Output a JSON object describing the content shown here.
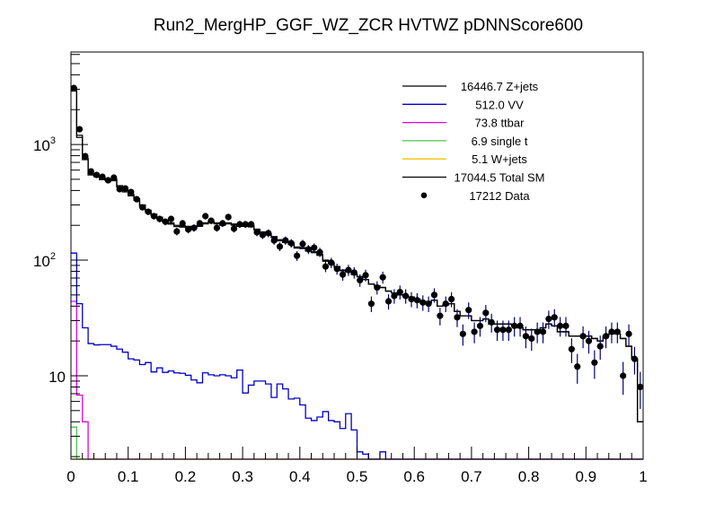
{
  "chart_data": {
    "type": "histogram",
    "title": "Run2_MergHP_GGF_WZ_ZCR HVTWZ  pDNNScore600",
    "xlabel": "",
    "ylabel": "",
    "xlim": [
      0,
      1
    ],
    "ylim": [
      1.9,
      6300
    ],
    "yscale": "log",
    "bin_width": 0.01,
    "x_ticks": [
      "0",
      "0.1",
      "0.2",
      "0.3",
      "0.4",
      "0.5",
      "0.6",
      "0.7",
      "0.8",
      "0.9",
      "1"
    ],
    "x_tick_values": [
      0,
      0.1,
      0.2,
      0.3,
      0.4,
      0.5,
      0.6,
      0.7,
      0.8,
      0.9,
      1
    ],
    "y_ticks": [
      {
        "value": 10,
        "base": "10",
        "exp": ""
      },
      {
        "value": 100,
        "base": "10",
        "exp": "2"
      },
      {
        "value": 1000,
        "base": "10",
        "exp": "3"
      }
    ],
    "legend_position": "top-right",
    "legend": [
      {
        "label": "16446.7 Z+jets",
        "color": "#000000",
        "style": "line"
      },
      {
        "label": "512.0 VV",
        "color": "#0000cc",
        "style": "line"
      },
      {
        "label": "73.8 ttbar",
        "color": "#e600e6",
        "style": "line"
      },
      {
        "label": "6.9 single t",
        "color": "#4cc44c",
        "style": "line"
      },
      {
        "label": "5.1 W+jets",
        "color": "#f2c200",
        "style": "line"
      },
      {
        "label": "17044.5 Total SM",
        "color": "#000000",
        "style": "line"
      },
      {
        "label": "17212 Data",
        "color": "#000000",
        "style": "marker"
      }
    ],
    "series": [
      {
        "name": "Data",
        "kind": "points",
        "color": "#000000",
        "values": [
          3080,
          1355,
          793,
          585,
          545,
          526,
          490,
          517,
          410,
          417,
          388,
          336,
          286,
          262,
          240,
          227,
          215,
          227,
          177,
          208,
          184,
          190,
          208,
          240,
          219,
          190,
          208,
          236,
          187,
          204,
          204,
          204,
          174,
          165,
          171,
          148,
          131,
          148,
          140,
          109,
          138,
          124,
          128,
          117,
          88,
          95,
          84,
          75,
          82,
          78,
          67,
          74,
          42,
          58,
          71,
          44,
          49,
          53,
          49,
          46,
          45,
          43,
          42,
          50,
          33,
          42,
          46,
          32,
          23,
          37,
          24,
          27,
          35,
          29,
          25,
          25,
          25,
          27,
          27,
          22,
          21,
          24,
          24,
          31,
          32,
          27,
          27,
          17,
          12,
          22,
          20,
          13,
          18,
          22,
          24,
          24,
          10,
          23,
          14,
          8
        ]
      },
      {
        "name": "Total SM",
        "kind": "step",
        "color": "#000000",
        "values": [
          3080,
          1200,
          760,
          560,
          540,
          510,
          500,
          500,
          440,
          400,
          370,
          340,
          300,
          270,
          250,
          235,
          220,
          210,
          200,
          198,
          196,
          194,
          200,
          210,
          215,
          210,
          205,
          210,
          205,
          200,
          200,
          198,
          185,
          175,
          170,
          160,
          150,
          145,
          140,
          130,
          128,
          122,
          118,
          112,
          100,
          95,
          88,
          82,
          80,
          76,
          72,
          68,
          62,
          60,
          58,
          54,
          52,
          50,
          49,
          48,
          46,
          44,
          43,
          45,
          40,
          41,
          42,
          36,
          33,
          33,
          30,
          30,
          31,
          28,
          28,
          28,
          28,
          27,
          26,
          25,
          25,
          25,
          26,
          28,
          27,
          24,
          24,
          22,
          22,
          22,
          22,
          21,
          20,
          22,
          23,
          23,
          21,
          18,
          14,
          4
        ]
      },
      {
        "name": "Z+jets",
        "kind": "step",
        "color": "#000000",
        "values": [
          2900,
          1150,
          740,
          545,
          527,
          496,
          486,
          486,
          428,
          389,
          360,
          330,
          291,
          262,
          243,
          229,
          214,
          205,
          195,
          193,
          192,
          190,
          196,
          206,
          211,
          206,
          201,
          206,
          201,
          196,
          196,
          194,
          182,
          172,
          167,
          157,
          147,
          142,
          137,
          127,
          126,
          120,
          116,
          110,
          98,
          94,
          87,
          81,
          79,
          75,
          72,
          68,
          62,
          60,
          58,
          54,
          52,
          50,
          49,
          48,
          46,
          44,
          43,
          45,
          40,
          41,
          42,
          36,
          33,
          33,
          30,
          30,
          31,
          28,
          28,
          28,
          28,
          27,
          26,
          25,
          25,
          25,
          26,
          28,
          27,
          24,
          24,
          22,
          22,
          22,
          22,
          21,
          20,
          22,
          23,
          23,
          21,
          18,
          14,
          4
        ]
      },
      {
        "name": "VV",
        "kind": "step",
        "color": "#0000cc",
        "values": [
          115,
          42,
          26,
          19,
          18.5,
          18.6,
          18.6,
          18,
          17,
          16,
          14,
          13.7,
          12.5,
          13,
          10.8,
          11.7,
          10.7,
          11,
          10.6,
          10.5,
          10.1,
          9.2,
          8.7,
          10.6,
          10.2,
          10,
          10.2,
          10,
          9.6,
          11.2,
          7.1,
          8.3,
          9,
          9,
          8.5,
          6.5,
          8.5,
          7.7,
          6.3,
          6.4,
          5.6,
          4.3,
          4.1,
          4.4,
          4.9,
          4.1,
          4,
          3.5,
          4.7,
          3.4,
          2.2,
          2.1,
          1.9,
          1.9,
          2.2,
          1.9,
          1.9,
          1.9,
          1.9,
          1.9,
          1.9,
          1.9,
          1.9,
          1.9,
          1.9,
          1.9,
          1.9,
          1.9,
          1.9,
          1.9,
          1.9,
          1.9,
          1.9,
          1.9,
          1.9,
          1.9,
          1.9,
          1.9,
          1.9,
          1.9,
          1.9,
          1.9,
          1.9,
          1.9,
          1.9,
          1.9,
          1.9,
          1.9,
          1.9,
          1.9,
          1.9,
          1.9,
          1.9,
          1.9,
          1.9,
          1.9,
          1.9,
          1.9,
          1.9,
          1.9
        ]
      },
      {
        "name": "ttbar",
        "kind": "step",
        "color": "#e600e6",
        "values": [
          44,
          6.8,
          4,
          1.9,
          1.9,
          1.9,
          1.9,
          1.9,
          1.9,
          1.9,
          1.9,
          1.9,
          1.9,
          1.9,
          1.9,
          1.9,
          1.9,
          1.9,
          1.9,
          1.9,
          1.9,
          1.9,
          1.9,
          1.9,
          1.9,
          1.9,
          1.9,
          1.9,
          1.9,
          1.9,
          1.9,
          1.9,
          1.9,
          1.9,
          1.9,
          1.9,
          1.9,
          1.9,
          1.9,
          1.9,
          1.9,
          1.9,
          1.9,
          1.9,
          1.9,
          1.9,
          1.9,
          1.9,
          1.9,
          1.9,
          1.9,
          1.9,
          1.9,
          1.9,
          1.9,
          1.9,
          1.9,
          1.9,
          1.9,
          1.9,
          1.9,
          1.9,
          1.9,
          1.9,
          1.9,
          1.9,
          1.9,
          1.9,
          1.9,
          1.9,
          1.9,
          1.9,
          1.9,
          1.9,
          1.9,
          1.9,
          1.9,
          1.9,
          1.9,
          1.9,
          1.9,
          1.9,
          1.9,
          1.9,
          1.9,
          1.9,
          1.9,
          1.9,
          1.9,
          1.9,
          1.9,
          1.9,
          1.9,
          1.9,
          1.9,
          1.9,
          1.9,
          1.9,
          1.9,
          1.9
        ]
      },
      {
        "name": "single t",
        "kind": "step",
        "color": "#4cc44c",
        "values": [
          3.6,
          1.9,
          1.9,
          1.9,
          1.9,
          1.9,
          1.9,
          1.9,
          1.9,
          1.9,
          1.9,
          1.9,
          1.9,
          1.9,
          1.9,
          1.9,
          1.9,
          1.9,
          1.9,
          1.9,
          1.9,
          1.9,
          1.9,
          1.9,
          1.9,
          1.9,
          1.9,
          1.9,
          1.9,
          1.9,
          1.9,
          1.9,
          1.9,
          1.9,
          1.9,
          1.9,
          1.9,
          1.9,
          1.9,
          1.9,
          1.9,
          1.9,
          1.9,
          1.9,
          1.9,
          1.9,
          1.9,
          1.9,
          1.9,
          1.9,
          1.9,
          1.9,
          1.9,
          1.9,
          1.9,
          1.9,
          1.9,
          1.9,
          1.9,
          1.9,
          1.9,
          1.9,
          1.9,
          1.9,
          1.9,
          1.9,
          1.9,
          1.9,
          1.9,
          1.9,
          1.9,
          1.9,
          1.9,
          1.9,
          1.9,
          1.9,
          1.9,
          1.9,
          1.9,
          1.9,
          1.9,
          1.9,
          1.9,
          1.9,
          1.9,
          1.9,
          1.9,
          1.9,
          1.9,
          1.9,
          1.9,
          1.9,
          1.9,
          1.9,
          1.9,
          1.9,
          1.9,
          1.9,
          1.9,
          1.9
        ]
      },
      {
        "name": "W+jets",
        "kind": "step",
        "color": "#f2c200",
        "values": [
          1.9,
          1.9,
          1.9,
          1.9,
          1.9,
          1.9,
          1.9,
          1.9,
          1.9,
          1.9,
          1.9,
          1.9,
          1.9,
          1.9,
          1.9,
          1.9,
          1.9,
          1.9,
          1.9,
          1.9,
          1.9,
          1.9,
          1.9,
          1.9,
          1.9,
          1.9,
          1.9,
          1.9,
          1.9,
          1.9,
          1.9,
          1.9,
          1.9,
          1.9,
          1.9,
          1.9,
          1.9,
          1.9,
          1.9,
          1.9,
          1.9,
          1.9,
          1.9,
          1.9,
          1.9,
          1.9,
          1.9,
          1.9,
          1.9,
          1.9,
          1.9,
          1.9,
          1.9,
          1.9,
          1.9,
          1.9,
          1.9,
          1.9,
          1.9,
          1.9,
          1.9,
          1.9,
          1.9,
          1.9,
          1.9,
          1.9,
          1.9,
          1.9,
          1.9,
          1.9,
          1.9,
          1.9,
          1.9,
          1.9,
          1.9,
          1.9,
          1.9,
          1.9,
          1.9,
          1.9,
          1.9,
          1.9,
          1.9,
          1.9,
          1.9,
          1.9,
          1.9,
          1.9,
          1.9,
          1.9,
          1.9,
          1.9,
          1.9,
          1.9,
          1.9,
          1.9,
          1.9,
          1.9,
          1.9,
          1.9
        ]
      }
    ]
  }
}
